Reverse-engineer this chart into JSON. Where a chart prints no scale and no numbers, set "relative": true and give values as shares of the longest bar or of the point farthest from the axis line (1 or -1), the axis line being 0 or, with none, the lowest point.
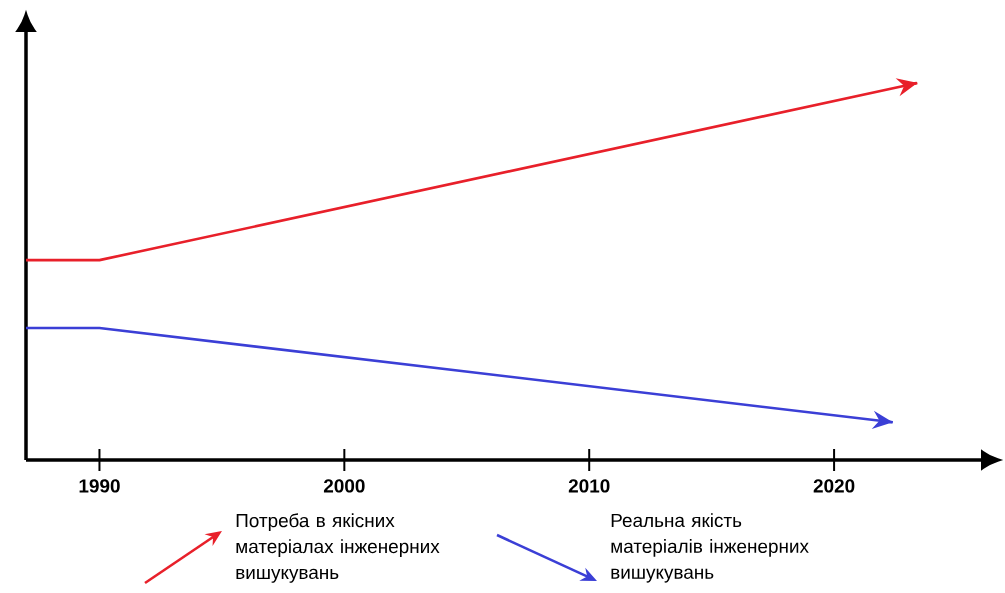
{
  "chart_data": {
    "type": "line",
    "relative": true,
    "xlim": [
      1987,
      2026
    ],
    "xticks": [
      {
        "value": 1990,
        "label": "1990"
      },
      {
        "value": 2000,
        "label": "2000"
      },
      {
        "value": 2010,
        "label": "2010"
      },
      {
        "value": 2020,
        "label": "2020"
      }
    ],
    "grid": false,
    "legend": "bottom",
    "marker": "none",
    "line_style": "solid",
    "series": [
      {
        "name": "Потреба в якісних матеріалах інженерних вишукувань",
        "color": "#e8202a",
        "x": [
          1987,
          1990,
          2023.4
        ],
        "values": [
          0.53,
          0.53,
          1
        ]
      },
      {
        "name": "Реальна якість матеріалів інженерних вишукувань",
        "color": "#3b3fd6",
        "x": [
          1987,
          1990,
          2022.4
        ],
        "values": [
          0.35,
          0.35,
          0.1
        ]
      }
    ]
  }
}
